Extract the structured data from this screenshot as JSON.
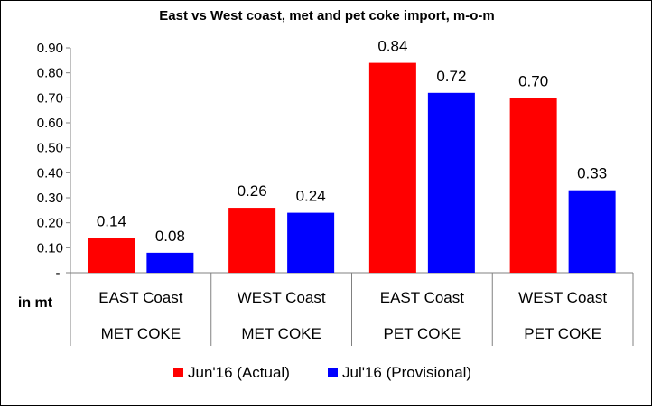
{
  "chart_data": {
    "type": "bar",
    "title": "East vs West coast, met and pet coke import, m-o-m",
    "ylabel": "in mt",
    "ylim": [
      0,
      0.9
    ],
    "y_ticks": [
      "-",
      "0.10",
      "0.20",
      "0.30",
      "0.40",
      "0.50",
      "0.60",
      "0.70",
      "0.80",
      "0.90"
    ],
    "grid": false,
    "legend_position": "bottom",
    "categories": [
      {
        "label": "EAST Coast",
        "group": "MET COKE"
      },
      {
        "label": "WEST Coast",
        "group": "MET COKE"
      },
      {
        "label": "EAST Coast",
        "group": "PET COKE"
      },
      {
        "label": "WEST Coast",
        "group": "PET COKE"
      }
    ],
    "series": [
      {
        "name": "Jun'16 (Actual)",
        "color": "#ff0000",
        "values": [
          0.14,
          0.26,
          0.84,
          0.7
        ],
        "labels": [
          "0.14",
          "0.26",
          "0.84",
          "0.70"
        ]
      },
      {
        "name": "Jul'16 (Provisional)",
        "color": "#0000ff",
        "values": [
          0.08,
          0.24,
          0.72,
          0.33
        ],
        "labels": [
          "0.08",
          "0.24",
          "0.72",
          "0.33"
        ]
      }
    ]
  }
}
